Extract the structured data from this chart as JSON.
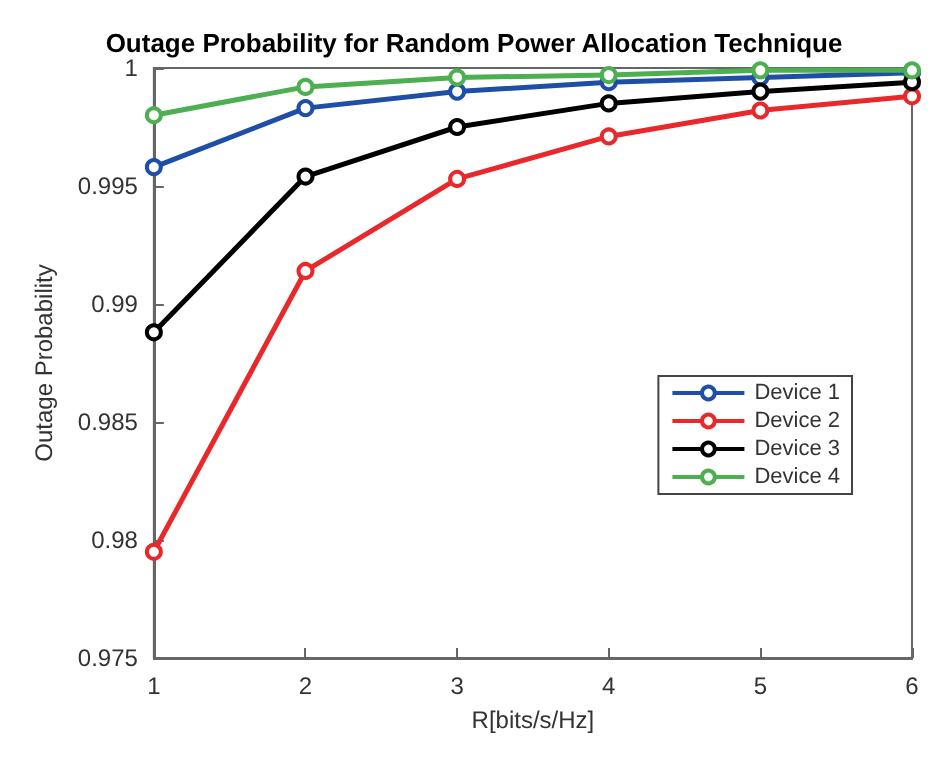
{
  "chart_data": {
    "type": "line",
    "title": "Outage Probability for Random Power Allocation Technique",
    "xlabel": "R[bits/s/Hz]",
    "ylabel": "Outage Probability",
    "x": [
      1,
      2,
      3,
      4,
      5,
      6
    ],
    "series": [
      {
        "name": "Device 1",
        "color": "#1f4ea6",
        "values": [
          0.9958,
          0.9983,
          0.999,
          0.9994,
          0.9996,
          0.9998
        ]
      },
      {
        "name": "Device 2",
        "color": "#e8282b",
        "values": [
          0.9795,
          0.9914,
          0.9953,
          0.9971,
          0.9982,
          0.9988
        ]
      },
      {
        "name": "Device 3",
        "color": "#000000",
        "values": [
          0.9888,
          0.9954,
          0.9975,
          0.9985,
          0.999,
          0.9994
        ]
      },
      {
        "name": "Device 4",
        "color": "#4caf50",
        "values": [
          0.998,
          0.9992,
          0.9996,
          0.9997,
          0.9999,
          0.9999
        ]
      }
    ],
    "xlim": [
      1,
      6
    ],
    "xticks": [
      1,
      2,
      3,
      4,
      5,
      6
    ],
    "ylim": [
      0.975,
      1
    ],
    "yticks": [
      0.975,
      0.98,
      0.985,
      0.99,
      0.995,
      1
    ],
    "grid": false,
    "legend": "right",
    "marker": "circle",
    "line_style": "solid"
  }
}
